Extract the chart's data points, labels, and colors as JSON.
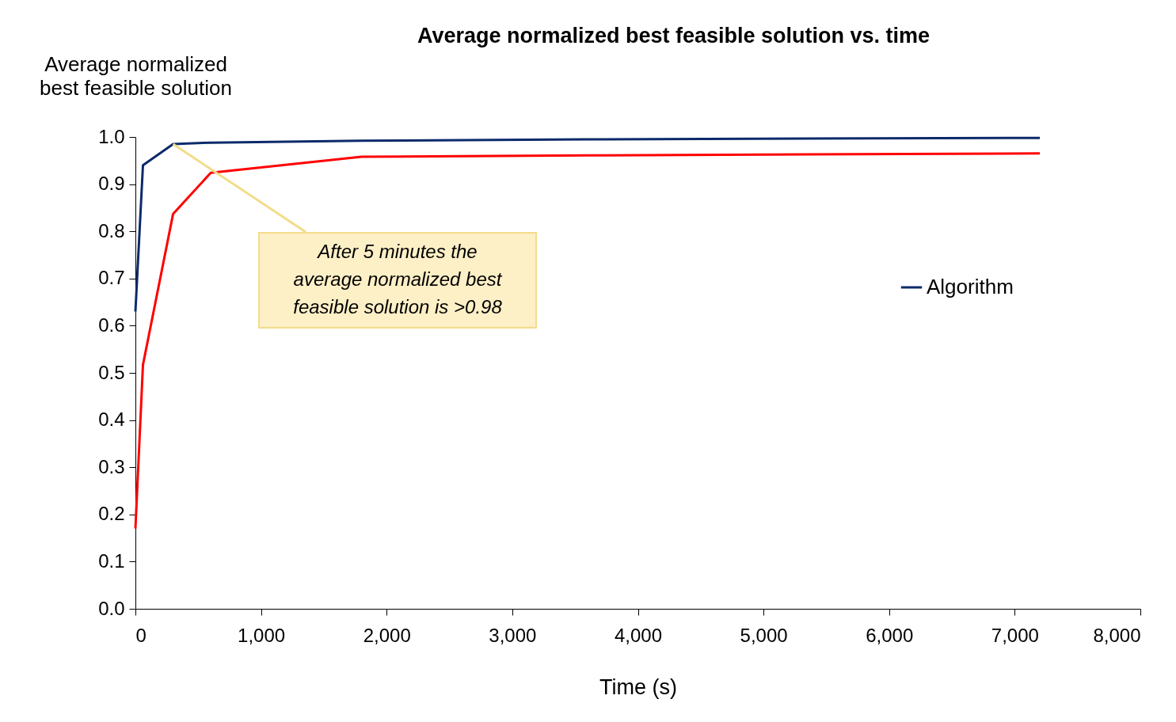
{
  "chart_data": {
    "type": "line",
    "title": "Average normalized best feasible solution vs. time",
    "xlabel": "Time (s)",
    "ylabel": "Average normalized best feasible solution",
    "series": [
      {
        "name": "Algorithm",
        "color": "#0c2a6b",
        "x": [
          0,
          60,
          300,
          600,
          1800,
          3600,
          7200
        ],
        "values": [
          0.63,
          0.94,
          0.985,
          0.988,
          0.992,
          0.995,
          0.998
        ]
      },
      {
        "color": "#ff0000",
        "x": [
          0,
          60,
          300,
          600,
          1800,
          3600,
          7200
        ],
        "values": [
          0.17,
          0.517,
          0.837,
          0.924,
          0.958,
          0.961,
          0.965
        ]
      }
    ],
    "xlim": [
      0,
      8000
    ],
    "xticks": [
      0,
      {
        "value": 1000,
        "label": "1,000"
      },
      {
        "value": 2000,
        "label": "2,000"
      },
      {
        "value": 3000,
        "label": "3,000"
      },
      {
        "value": 4000,
        "label": "4,000"
      },
      {
        "value": 5000,
        "label": "5,000"
      },
      {
        "value": 6000,
        "label": "6,000"
      },
      {
        "value": 7000,
        "label": "7,000"
      },
      {
        "value": 8000,
        "label": "8,000"
      }
    ],
    "ylim": [
      0,
      1
    ],
    "yticks": [
      {
        "value": 0,
        "label": "0.0"
      },
      0.1,
      0.2,
      0.3,
      0.4,
      0.5,
      0.6,
      0.7,
      0.8,
      0.9,
      {
        "value": 1,
        "label": "1.0"
      }
    ],
    "annotations": [
      {
        "text": "After 5 minutes the average normalized best feasible solution is >0.98",
        "x": 300,
        "y": 0.985
      }
    ],
    "grid": false,
    "legend": "right",
    "marker": "none",
    "line_style": "solid"
  }
}
